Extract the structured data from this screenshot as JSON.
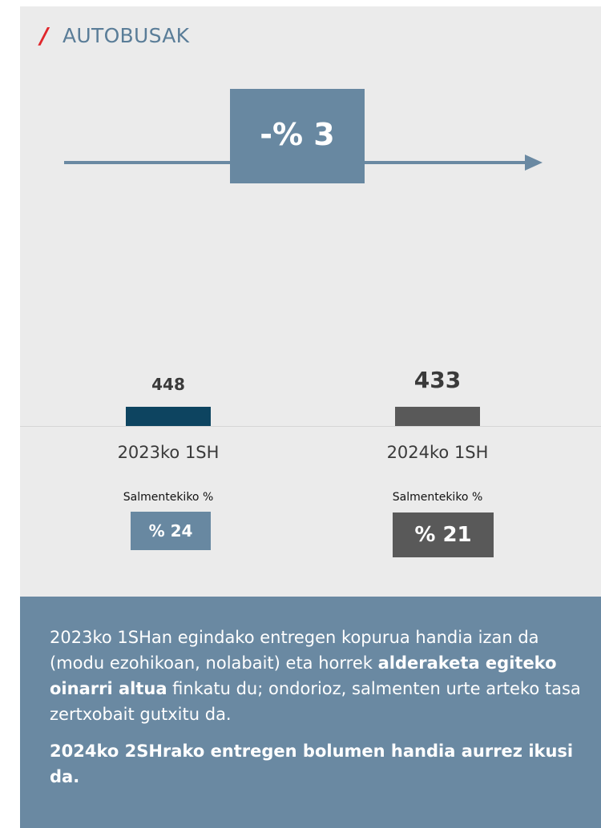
{
  "title": "AUTOBUSAK",
  "change": "-% 3",
  "periods": [
    {
      "label": "2023ko 1SH",
      "value": 448,
      "share_label": "Salmentekiko %",
      "share": "% 24"
    },
    {
      "label": "2024ko 1SH",
      "value": 433,
      "share_label": "Salmentekiko %",
      "share": "% 21"
    }
  ],
  "paragraphs": [
    [
      {
        "text": "2023ko 1SHan egindako entregen kopurua handia izan da (modu ezohikoan, nolabait) eta horrek ",
        "bold": false
      },
      {
        "text": "alderaketa egiteko oinarri altua",
        "bold": true
      },
      {
        "text": " finkatu du; ondorioz, salmenten urte arteko tasa zertxobait gutxitu da.",
        "bold": false
      }
    ],
    [
      {
        "text": "2024ko 2SHrako entregen bolumen handia aurrez ikusi da.",
        "bold": true
      }
    ]
  ]
}
